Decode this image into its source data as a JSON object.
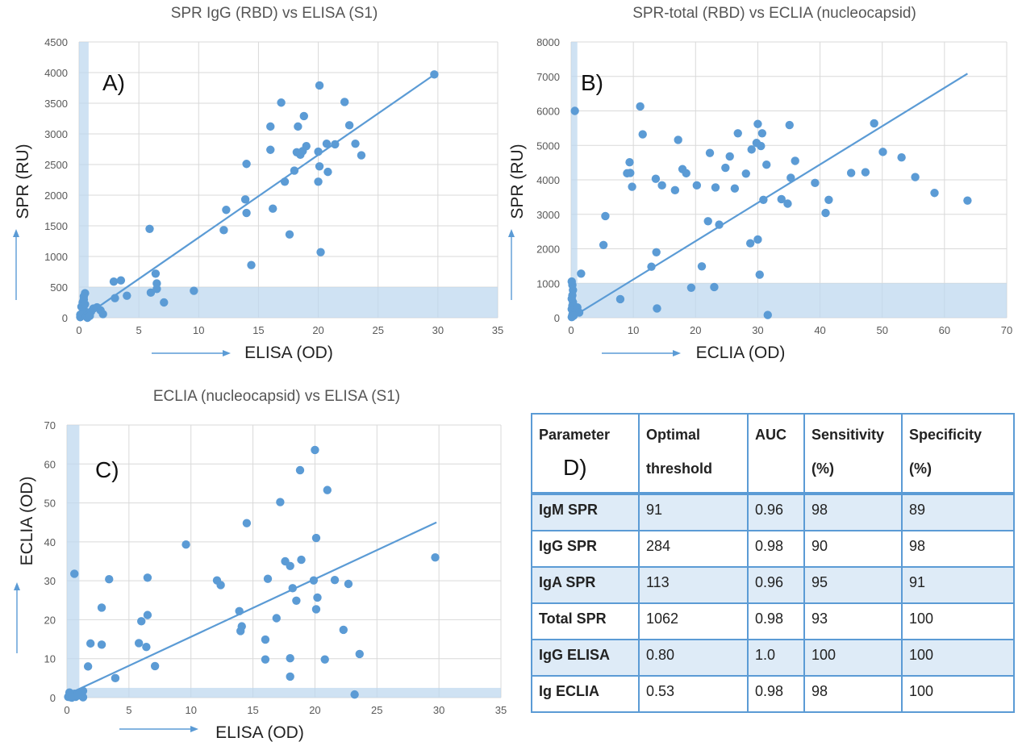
{
  "chart_data": [
    {
      "id": "A",
      "type": "scatter",
      "title": "SPR IgG (RBD) vs ELISA (S1)",
      "panel_label": "A)",
      "xlabel": "ELISA (OD)",
      "ylabel": "SPR (RU)",
      "xlim": [
        0,
        35
      ],
      "ylim": [
        0,
        4500
      ],
      "xticks": [
        0,
        5,
        10,
        15,
        20,
        25,
        30,
        35
      ],
      "yticks": [
        0,
        500,
        1000,
        1500,
        2000,
        2500,
        3000,
        3500,
        4000,
        4500
      ],
      "grid": true,
      "bands": {
        "x_max": 0.8,
        "y_max": 500
      },
      "trendline": [
        [
          0.3,
          0
        ],
        [
          29.8,
          3980
        ]
      ],
      "points": [
        [
          0.1,
          10
        ],
        [
          0.2,
          30
        ],
        [
          0.3,
          80
        ],
        [
          0.4,
          130
        ],
        [
          0.2,
          180
        ],
        [
          0.3,
          250
        ],
        [
          0.4,
          300
        ],
        [
          0.5,
          400
        ],
        [
          0.1,
          50
        ],
        [
          0.6,
          20
        ],
        [
          0.8,
          60
        ],
        [
          1.0,
          100
        ],
        [
          1.2,
          150
        ],
        [
          1.5,
          170
        ],
        [
          1.8,
          120
        ],
        [
          2.0,
          60
        ],
        [
          0.5,
          220
        ],
        [
          0.7,
          0
        ],
        [
          0.4,
          350
        ],
        [
          0.9,
          30
        ],
        [
          2.9,
          590
        ],
        [
          3.5,
          610
        ],
        [
          3.0,
          320
        ],
        [
          4.0,
          360
        ],
        [
          5.9,
          1450
        ],
        [
          6.0,
          410
        ],
        [
          6.4,
          720
        ],
        [
          6.5,
          470
        ],
        [
          6.5,
          560
        ],
        [
          7.1,
          250
        ],
        [
          9.6,
          440
        ],
        [
          12.1,
          1430
        ],
        [
          12.3,
          1760
        ],
        [
          13.9,
          1930
        ],
        [
          14.0,
          1710
        ],
        [
          14.0,
          2510
        ],
        [
          14.4,
          860
        ],
        [
          16.0,
          2740
        ],
        [
          16.0,
          3120
        ],
        [
          16.2,
          1780
        ],
        [
          16.9,
          3510
        ],
        [
          17.2,
          2220
        ],
        [
          17.6,
          1360
        ],
        [
          18.0,
          2400
        ],
        [
          18.2,
          2700
        ],
        [
          18.3,
          3120
        ],
        [
          18.5,
          2660
        ],
        [
          18.7,
          2720
        ],
        [
          18.8,
          3290
        ],
        [
          19.0,
          2800
        ],
        [
          20.0,
          2220
        ],
        [
          20.0,
          2710
        ],
        [
          20.1,
          3790
        ],
        [
          20.1,
          2470
        ],
        [
          20.2,
          1070
        ],
        [
          20.7,
          2840
        ],
        [
          20.8,
          2380
        ],
        [
          21.4,
          2830
        ],
        [
          22.2,
          3520
        ],
        [
          22.6,
          3140
        ],
        [
          23.1,
          2840
        ],
        [
          23.6,
          2650
        ],
        [
          29.7,
          3970
        ]
      ]
    },
    {
      "id": "B",
      "type": "scatter",
      "title": "SPR-total (RBD) vs ECLIA (nucleocapsid)",
      "panel_label": "B)",
      "xlabel": "ECLIA (OD)",
      "ylabel": "SPR (RU)",
      "xlim": [
        0,
        70
      ],
      "ylim": [
        0,
        8000
      ],
      "xticks": [
        0,
        10,
        20,
        30,
        40,
        50,
        60,
        70
      ],
      "yticks": [
        0,
        1000,
        2000,
        3000,
        4000,
        5000,
        6000,
        7000,
        8000
      ],
      "grid": true,
      "bands": {
        "x_max": 1.0,
        "y_max": 1000
      },
      "trendline": [
        [
          0,
          0
        ],
        [
          63.7,
          7080
        ]
      ],
      "points": [
        [
          0.1,
          20
        ],
        [
          0.2,
          80
        ],
        [
          0.3,
          150
        ],
        [
          0.1,
          250
        ],
        [
          0.2,
          350
        ],
        [
          0.3,
          450
        ],
        [
          0.1,
          550
        ],
        [
          0.2,
          650
        ],
        [
          0.3,
          800
        ],
        [
          0.2,
          950
        ],
        [
          0.1,
          1050
        ],
        [
          0.5,
          100
        ],
        [
          0.8,
          200
        ],
        [
          1.0,
          300
        ],
        [
          1.3,
          150
        ],
        [
          0.6,
          6000
        ],
        [
          1.6,
          1280
        ],
        [
          0.4,
          60
        ],
        [
          5.2,
          2110
        ],
        [
          5.5,
          2950
        ],
        [
          7.9,
          540
        ],
        [
          9.0,
          4190
        ],
        [
          9.4,
          4510
        ],
        [
          9.5,
          4200
        ],
        [
          9.8,
          3800
        ],
        [
          11.1,
          6130
        ],
        [
          11.5,
          5320
        ],
        [
          12.9,
          1480
        ],
        [
          13.6,
          4030
        ],
        [
          13.7,
          1900
        ],
        [
          13.8,
          270
        ],
        [
          14.6,
          3840
        ],
        [
          16.7,
          3700
        ],
        [
          17.2,
          5160
        ],
        [
          17.9,
          4310
        ],
        [
          18.5,
          4190
        ],
        [
          19.3,
          870
        ],
        [
          20.2,
          3840
        ],
        [
          21.0,
          1490
        ],
        [
          22.0,
          2800
        ],
        [
          22.3,
          4780
        ],
        [
          23.0,
          890
        ],
        [
          23.2,
          3780
        ],
        [
          23.8,
          2700
        ],
        [
          24.8,
          4350
        ],
        [
          25.5,
          4680
        ],
        [
          26.3,
          3750
        ],
        [
          26.8,
          5350
        ],
        [
          28.1,
          4180
        ],
        [
          28.8,
          2160
        ],
        [
          29.0,
          4880
        ],
        [
          29.8,
          5070
        ],
        [
          30.0,
          5620
        ],
        [
          30.0,
          2270
        ],
        [
          30.3,
          1250
        ],
        [
          30.5,
          4980
        ],
        [
          30.7,
          5350
        ],
        [
          30.9,
          3420
        ],
        [
          31.4,
          4440
        ],
        [
          31.6,
          80
        ],
        [
          33.8,
          3440
        ],
        [
          34.8,
          3310
        ],
        [
          35.1,
          5590
        ],
        [
          35.3,
          4060
        ],
        [
          36.0,
          4550
        ],
        [
          39.2,
          3910
        ],
        [
          40.9,
          3040
        ],
        [
          41.4,
          3420
        ],
        [
          45.0,
          4200
        ],
        [
          47.3,
          4220
        ],
        [
          48.7,
          5640
        ],
        [
          50.1,
          4810
        ],
        [
          53.1,
          4650
        ],
        [
          55.3,
          4080
        ],
        [
          58.4,
          3620
        ],
        [
          63.7,
          3400
        ]
      ]
    },
    {
      "id": "C",
      "type": "scatter",
      "title": "ECLIA (nucleocapsid) vs ELISA (S1)",
      "panel_label": "C)",
      "xlabel": "ELISA (OD)",
      "ylabel": "ECLIA (OD)",
      "xlim": [
        0,
        35
      ],
      "ylim": [
        0,
        70
      ],
      "xticks": [
        0,
        5,
        10,
        15,
        20,
        25,
        30,
        35
      ],
      "yticks": [
        0,
        10,
        20,
        30,
        40,
        50,
        60,
        70
      ],
      "grid": true,
      "bands": {
        "x_max": 1.0,
        "y_max": 2.5
      },
      "trendline": [
        [
          0.5,
          1.5
        ],
        [
          29.8,
          45
        ]
      ],
      "points": [
        [
          0.1,
          0.2
        ],
        [
          0.2,
          0.6
        ],
        [
          0.3,
          0.1
        ],
        [
          0.4,
          0.8
        ],
        [
          0.5,
          0.3
        ],
        [
          0.6,
          1.0
        ],
        [
          0.7,
          0.2
        ],
        [
          0.8,
          0.5
        ],
        [
          1.0,
          1.2
        ],
        [
          1.2,
          0.4
        ],
        [
          0.2,
          1.3
        ],
        [
          0.4,
          0.0
        ],
        [
          1.3,
          0.1
        ],
        [
          1.3,
          1.7
        ],
        [
          0.9,
          0.9
        ],
        [
          0.6,
          31.8
        ],
        [
          1.7,
          8.0
        ],
        [
          1.9,
          13.9
        ],
        [
          2.8,
          23.1
        ],
        [
          2.8,
          13.6
        ],
        [
          3.4,
          30.4
        ],
        [
          3.9,
          5.0
        ],
        [
          5.8,
          14.0
        ],
        [
          6.0,
          19.6
        ],
        [
          6.4,
          13.0
        ],
        [
          6.5,
          21.2
        ],
        [
          6.5,
          30.8
        ],
        [
          7.1,
          8.1
        ],
        [
          9.6,
          39.3
        ],
        [
          12.1,
          30.1
        ],
        [
          12.4,
          28.9
        ],
        [
          13.9,
          22.2
        ],
        [
          14.0,
          17.1
        ],
        [
          14.1,
          18.3
        ],
        [
          14.5,
          44.8
        ],
        [
          16.0,
          14.9
        ],
        [
          16.0,
          9.8
        ],
        [
          16.2,
          30.5
        ],
        [
          16.9,
          20.4
        ],
        [
          17.2,
          50.2
        ],
        [
          17.6,
          35.0
        ],
        [
          18.0,
          33.8
        ],
        [
          18.0,
          5.4
        ],
        [
          18.0,
          10.1
        ],
        [
          18.2,
          28.1
        ],
        [
          18.5,
          24.9
        ],
        [
          18.8,
          58.4
        ],
        [
          18.9,
          35.4
        ],
        [
          19.9,
          30.1
        ],
        [
          20.0,
          63.6
        ],
        [
          20.1,
          41.0
        ],
        [
          20.1,
          22.7
        ],
        [
          20.2,
          25.7
        ],
        [
          20.8,
          9.8
        ],
        [
          21.0,
          53.3
        ],
        [
          21.6,
          30.2
        ],
        [
          22.3,
          17.4
        ],
        [
          22.7,
          29.2
        ],
        [
          23.2,
          0.8
        ],
        [
          23.6,
          11.2
        ],
        [
          29.7,
          36.0
        ]
      ]
    }
  ],
  "table": {
    "panel_label": "D)",
    "headers": [
      "Parameter",
      "Optimal threshold",
      "AUC",
      "Sensitivity (%)",
      "Specificity (%)"
    ],
    "rows": [
      [
        "IgM SPR",
        "91",
        "0.96",
        "98",
        "89"
      ],
      [
        "IgG SPR",
        "284",
        "0.98",
        "90",
        "98"
      ],
      [
        "IgA SPR",
        "113",
        "0.96",
        "95",
        "91"
      ],
      [
        "Total SPR",
        "1062",
        "0.98",
        "93",
        "100"
      ],
      [
        "IgG ELISA",
        "0.80",
        "1.0",
        "100",
        "100"
      ],
      [
        "Ig ECLIA",
        "0.53",
        "0.98",
        "98",
        "100"
      ]
    ]
  },
  "colors": {
    "accent": "#5b9bd5",
    "band": "#bdd7ee",
    "row_alt": "#deebf7",
    "grid": "#d9d9d9"
  }
}
